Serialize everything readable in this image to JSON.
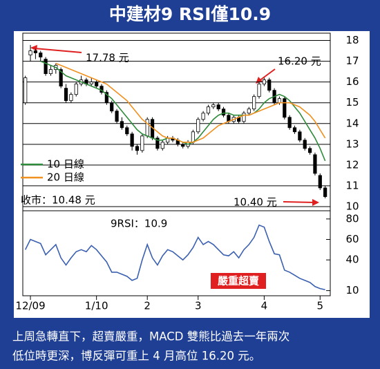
{
  "title": "中建材9 RSI僅10.9",
  "caption": [
    "上周急轉直下，超賣嚴重，MACD 雙熊比過去一年兩次",
    "低位時更深，博反彈可重上 4 月高位 16.20 元。"
  ],
  "chart_data": [
    {
      "type": "candlestick",
      "ylim": [
        9.8,
        18.35
      ],
      "yticks": [
        10,
        11,
        12,
        13,
        14,
        15,
        16,
        17,
        18
      ],
      "grid": true,
      "xlim": [
        -0.5,
        60
      ],
      "up_color": "#ffffff",
      "down_color": "#000000",
      "ohlc": [
        [
          15.0,
          16.3,
          14.9,
          16.2
        ],
        [
          17.3,
          17.78,
          17.0,
          17.5
        ],
        [
          17.5,
          17.6,
          17.1,
          17.4
        ],
        [
          17.4,
          17.5,
          17.0,
          17.2
        ],
        [
          17.1,
          17.2,
          16.3,
          16.4
        ],
        [
          16.4,
          16.8,
          16.3,
          16.6
        ],
        [
          16.6,
          16.9,
          16.4,
          16.8
        ],
        [
          16.6,
          16.7,
          15.7,
          15.8
        ],
        [
          15.7,
          15.9,
          15.0,
          15.1
        ],
        [
          15.1,
          15.5,
          15.0,
          15.4
        ],
        [
          15.4,
          16.0,
          15.3,
          15.9
        ],
        [
          15.9,
          16.3,
          15.8,
          16.1
        ],
        [
          16.1,
          16.2,
          15.8,
          15.9
        ],
        [
          15.9,
          16.2,
          15.8,
          16.0
        ],
        [
          16.0,
          16.1,
          15.7,
          15.8
        ],
        [
          15.8,
          15.9,
          15.4,
          15.5
        ],
        [
          15.5,
          15.6,
          14.9,
          15.0
        ],
        [
          15.0,
          15.1,
          14.5,
          14.6
        ],
        [
          14.6,
          14.7,
          14.0,
          14.1
        ],
        [
          14.1,
          14.3,
          13.7,
          13.8
        ],
        [
          13.8,
          13.9,
          13.4,
          13.5
        ],
        [
          13.5,
          13.6,
          12.7,
          12.9
        ],
        [
          12.9,
          13.0,
          12.5,
          12.7
        ],
        [
          12.7,
          13.5,
          12.6,
          13.4
        ],
        [
          13.4,
          14.3,
          13.3,
          14.2
        ],
        [
          14.2,
          14.3,
          13.2,
          13.3
        ],
        [
          13.3,
          13.4,
          12.7,
          12.8
        ],
        [
          12.8,
          13.2,
          12.7,
          13.1
        ],
        [
          13.1,
          13.4,
          13.0,
          13.3
        ],
        [
          13.3,
          13.4,
          13.1,
          13.2
        ],
        [
          13.2,
          13.3,
          12.9,
          13.0
        ],
        [
          13.0,
          13.1,
          12.8,
          12.9
        ],
        [
          12.9,
          13.2,
          12.8,
          13.1
        ],
        [
          13.1,
          13.7,
          13.0,
          13.6
        ],
        [
          13.6,
          14.3,
          13.5,
          14.2
        ],
        [
          14.2,
          14.6,
          14.1,
          14.5
        ],
        [
          14.5,
          14.9,
          14.4,
          14.8
        ],
        [
          14.8,
          15.0,
          14.7,
          14.9
        ],
        [
          14.9,
          15.0,
          14.6,
          14.7
        ],
        [
          14.7,
          14.8,
          14.3,
          14.4
        ],
        [
          14.4,
          14.5,
          14.0,
          14.1
        ],
        [
          14.1,
          14.4,
          14.0,
          14.3
        ],
        [
          14.3,
          14.4,
          14.0,
          14.1
        ],
        [
          14.1,
          14.6,
          14.0,
          14.5
        ],
        [
          14.5,
          14.8,
          14.4,
          14.7
        ],
        [
          14.7,
          15.4,
          14.6,
          15.3
        ],
        [
          15.3,
          16.0,
          15.2,
          15.9
        ],
        [
          15.9,
          16.2,
          15.8,
          16.1
        ],
        [
          16.1,
          16.2,
          15.5,
          15.6
        ],
        [
          15.6,
          15.7,
          14.9,
          15.0
        ],
        [
          15.0,
          15.3,
          14.9,
          15.2
        ],
        [
          15.2,
          15.3,
          14.2,
          14.3
        ],
        [
          14.3,
          14.4,
          13.7,
          13.8
        ],
        [
          13.8,
          13.9,
          13.5,
          13.6
        ],
        [
          13.6,
          13.7,
          13.1,
          13.2
        ],
        [
          13.2,
          13.3,
          12.7,
          12.8
        ],
        [
          12.8,
          12.9,
          12.5,
          12.6
        ],
        [
          12.5,
          12.6,
          11.5,
          11.6
        ],
        [
          11.5,
          11.6,
          10.8,
          10.9
        ],
        [
          10.9,
          11.0,
          10.4,
          10.48
        ]
      ],
      "series": [
        {
          "name": "10 日線",
          "color": "#2e8b3a",
          "values": [
            null,
            null,
            null,
            17.0,
            16.9,
            16.8,
            16.7,
            16.5,
            16.3,
            16.2,
            16.1,
            16.0,
            15.9,
            15.8,
            15.7,
            15.6,
            15.4,
            15.2,
            14.9,
            14.6,
            14.3,
            14.0,
            13.7,
            13.5,
            13.4,
            13.3,
            13.2,
            13.2,
            13.3,
            13.3,
            13.2,
            13.1,
            13.0,
            13.1,
            13.3,
            13.6,
            13.9,
            14.2,
            14.4,
            14.5,
            14.5,
            14.4,
            14.4,
            14.4,
            14.4,
            14.5,
            14.7,
            15.0,
            15.2,
            15.3,
            15.4,
            15.3,
            15.1,
            14.8,
            14.5,
            14.1,
            13.7,
            13.3,
            12.8,
            12.2
          ]
        },
        {
          "name": "20 日線",
          "color": "#f0901e",
          "values": [
            null,
            null,
            null,
            null,
            null,
            null,
            16.9,
            16.8,
            16.7,
            16.6,
            16.5,
            16.4,
            16.3,
            16.2,
            16.1,
            16.0,
            15.9,
            15.7,
            15.5,
            15.3,
            15.1,
            14.8,
            14.5,
            14.2,
            14.0,
            13.8,
            13.6,
            13.4,
            13.3,
            13.3,
            13.2,
            13.1,
            13.1,
            13.1,
            13.2,
            13.3,
            13.5,
            13.7,
            13.9,
            14.0,
            14.1,
            14.2,
            14.3,
            14.4,
            14.4,
            14.5,
            14.6,
            14.7,
            14.8,
            14.9,
            15.0,
            15.0,
            15.0,
            14.9,
            14.8,
            14.6,
            14.4,
            14.1,
            13.7,
            13.3
          ]
        }
      ],
      "annotations": [
        "17.78 元",
        "16.20 元",
        "10.40 元"
      ],
      "close_label": "收市：10.48 元"
    },
    {
      "type": "line",
      "label": "9RSI：10.9",
      "annotation": "嚴重超賣",
      "ylim": [
        5,
        88
      ],
      "yticks": [
        80,
        60,
        40,
        10
      ],
      "xlim": [
        -0.5,
        60
      ],
      "xticks": [
        {
          "value": 1,
          "label": "12/09"
        },
        {
          "value": 14,
          "label": "1/10"
        },
        {
          "value": 24,
          "label": "2"
        },
        {
          "value": 34,
          "label": "3"
        },
        {
          "value": 47,
          "label": "4"
        },
        {
          "value": 58,
          "label": "5"
        }
      ],
      "color": "#3a5fb0",
      "values": [
        50,
        60,
        58,
        56,
        45,
        50,
        55,
        42,
        35,
        42,
        48,
        50,
        48,
        54,
        50,
        44,
        38,
        28,
        28,
        26,
        24,
        20,
        22,
        40,
        55,
        42,
        35,
        44,
        50,
        48,
        44,
        40,
        45,
        52,
        62,
        55,
        58,
        55,
        50,
        45,
        44,
        48,
        42,
        50,
        55,
        62,
        74,
        72,
        58,
        46,
        45,
        30,
        28,
        25,
        22,
        20,
        18,
        14,
        12,
        10.9
      ]
    }
  ]
}
